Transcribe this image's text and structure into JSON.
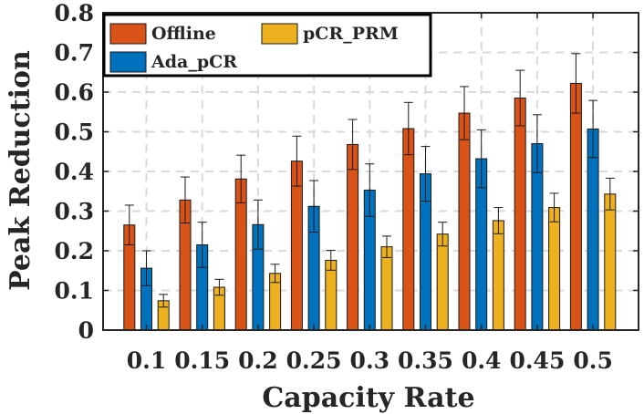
{
  "chart_data": {
    "type": "bar",
    "title": "",
    "xlabel": "Capacity Rate",
    "ylabel": "Peak Reduction",
    "ylim": [
      0,
      0.8
    ],
    "yticks": [
      "0",
      "0.1",
      "0.2",
      "0.3",
      "0.4",
      "0.5",
      "0.6",
      "0.7",
      "0.8"
    ],
    "categories": [
      "0.1",
      "0.15",
      "0.2",
      "0.25",
      "0.3",
      "0.35",
      "0.4",
      "0.45",
      "0.5"
    ],
    "grid": true,
    "legend_position": "top-left",
    "series": [
      {
        "name": "Offline",
        "color": "#d95319",
        "values": [
          0.265,
          0.328,
          0.381,
          0.426,
          0.468,
          0.508,
          0.547,
          0.585,
          0.622
        ],
        "errors": [
          0.05,
          0.058,
          0.06,
          0.063,
          0.063,
          0.066,
          0.067,
          0.07,
          0.075
        ]
      },
      {
        "name": "Ada_pCR",
        "color": "#0072bd",
        "values": [
          0.156,
          0.215,
          0.266,
          0.312,
          0.353,
          0.394,
          0.432,
          0.47,
          0.507
        ],
        "errors": [
          0.044,
          0.057,
          0.062,
          0.065,
          0.066,
          0.069,
          0.073,
          0.073,
          0.072
        ]
      },
      {
        "name": "pCR_PRM",
        "color": "#edb120",
        "values": [
          0.074,
          0.108,
          0.143,
          0.176,
          0.21,
          0.242,
          0.276,
          0.309,
          0.343
        ],
        "errors": [
          0.016,
          0.02,
          0.023,
          0.025,
          0.027,
          0.03,
          0.033,
          0.036,
          0.04
        ]
      }
    ]
  }
}
